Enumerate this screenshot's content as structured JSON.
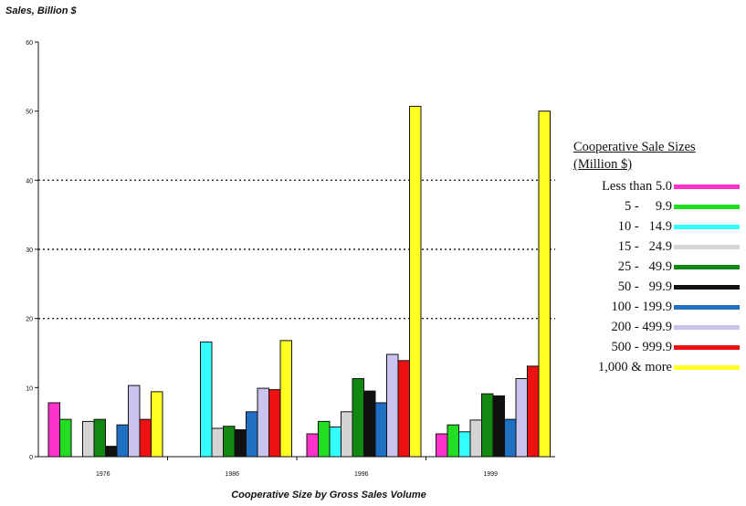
{
  "chart_data": {
    "type": "bar",
    "ylabel": "Sales, Billion $",
    "xlabel": "Cooperative Size by Gross Sales Volume",
    "ylim": [
      0,
      60
    ],
    "yticks": [
      "0",
      "10",
      "20",
      "30",
      "40",
      "50",
      "60"
    ],
    "categories": [
      "1976",
      "1986",
      "1996",
      "1999"
    ],
    "grid": "dotted horizontal at 20, 30, 40",
    "legend_title": [
      "Cooperative Sale Sizes",
      "(Million $)"
    ],
    "legend_placement": "right",
    "series": [
      {
        "name": "Less than 5.0",
        "color": "#ff33cc",
        "values": [
          7.8,
          null,
          3.3,
          3.3
        ]
      },
      {
        "name": "5 -     9.9",
        "color": "#22dd22",
        "values": [
          5.4,
          null,
          5.1,
          4.6
        ]
      },
      {
        "name": "10 -   14.9",
        "color": "#33ffff",
        "values": [
          null,
          16.6,
          4.3,
          3.6
        ]
      },
      {
        "name": "15 -   24.9",
        "color": "#d4d4d4",
        "values": [
          5.1,
          4.1,
          6.5,
          5.3
        ]
      },
      {
        "name": "25 -   49.9",
        "color": "#118811",
        "values": [
          5.4,
          4.4,
          11.3,
          9.1
        ]
      },
      {
        "name": "50 -   99.9",
        "color": "#111111",
        "values": [
          1.5,
          3.9,
          9.5,
          8.8
        ]
      },
      {
        "name": "100 - 199.9",
        "color": "#1f6fc2",
        "values": [
          4.6,
          6.5,
          7.8,
          5.4
        ]
      },
      {
        "name": "200 - 499.9",
        "color": "#c9c3f0",
        "values": [
          10.3,
          9.9,
          14.8,
          11.3
        ]
      },
      {
        "name": "500 - 999.9",
        "color": "#ee1111",
        "values": [
          5.4,
          9.7,
          13.9,
          13.1
        ]
      },
      {
        "name": "1,000 & more",
        "color": "#ffff22",
        "values": [
          9.4,
          16.8,
          50.7,
          50.0
        ]
      }
    ]
  }
}
